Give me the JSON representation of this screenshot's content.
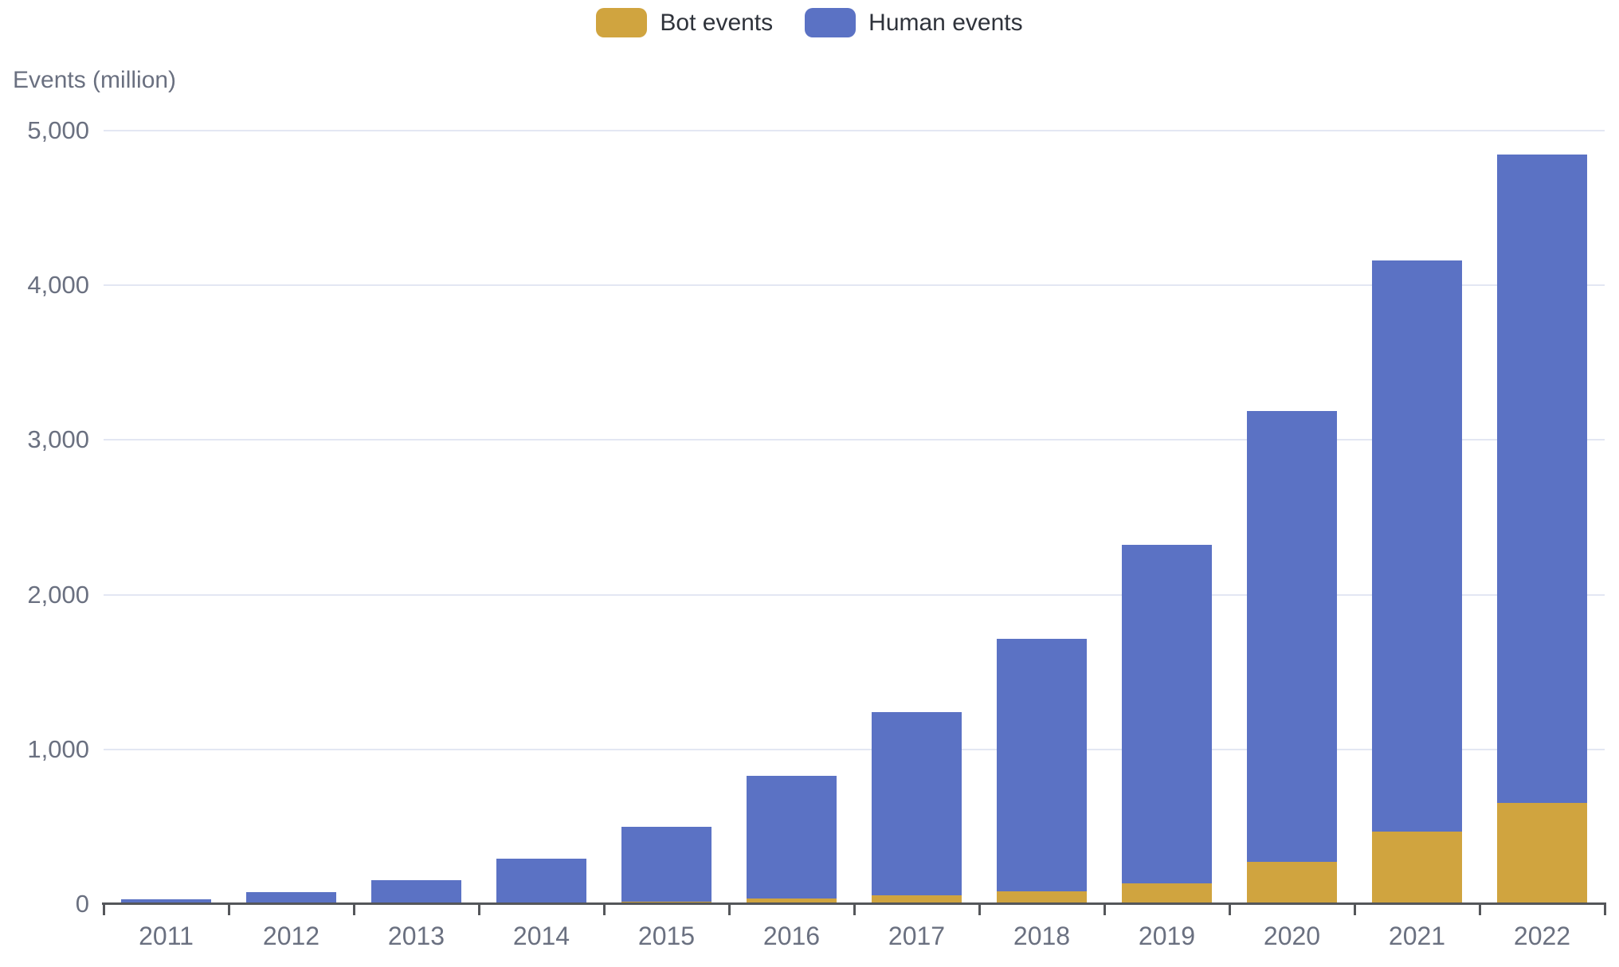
{
  "chart_data": {
    "type": "bar",
    "stacked": true,
    "title": "",
    "xlabel": "",
    "ylabel": "Events (million)",
    "ylim": [
      0,
      5000
    ],
    "y_ticks": [
      0,
      1000,
      2000,
      3000,
      4000,
      5000
    ],
    "y_tick_labels": [
      "0",
      "1,000",
      "2,000",
      "3,000",
      "4,000",
      "5,000"
    ],
    "grid": true,
    "legend_position": "top",
    "categories": [
      "2011",
      "2012",
      "2013",
      "2014",
      "2015",
      "2016",
      "2017",
      "2018",
      "2019",
      "2020",
      "2021",
      "2022"
    ],
    "series": [
      {
        "name": "Bot events",
        "color": "#d0a43f",
        "values": [
          1,
          1,
          3,
          6,
          12,
          32,
          52,
          75,
          130,
          267,
          466,
          647
        ]
      },
      {
        "name": "Human events",
        "color": "#5b72c4",
        "values": [
          25,
          71,
          148,
          282,
          484,
          790,
          1184,
          1634,
          2186,
          2914,
          3687,
          4193
        ]
      }
    ]
  },
  "colors": {
    "background": "#ffffff",
    "grid_line": "#e3e7f3",
    "axis_line": "#54565a",
    "axis_label": "#6a7080",
    "legend_text": "#2f333b",
    "bot_color": "#d0a43f",
    "human_color": "#5b72c4"
  }
}
